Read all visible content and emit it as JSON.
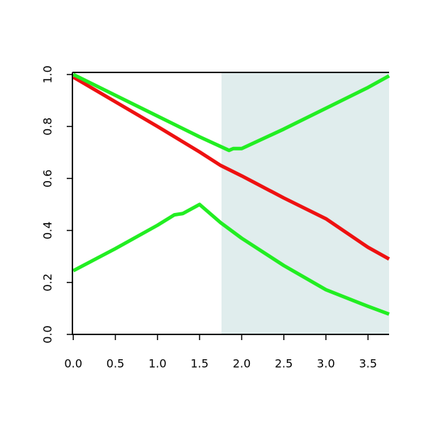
{
  "chart_data": {
    "type": "line",
    "xlim": [
      -0.01,
      3.75
    ],
    "ylim": [
      0,
      1.008
    ],
    "xticks": [
      {
        "value": 0,
        "label": "0.0"
      },
      {
        "value": 0.5,
        "label": "0.5"
      },
      {
        "value": 1,
        "label": "1.0"
      },
      {
        "value": 1.5,
        "label": "1.5"
      },
      {
        "value": 2,
        "label": "2.0"
      },
      {
        "value": 2.5,
        "label": "2.5"
      },
      {
        "value": 3,
        "label": "3.0"
      },
      {
        "value": 3.5,
        "label": "3.5"
      }
    ],
    "yticks": [
      {
        "value": 0,
        "label": "0.0"
      },
      {
        "value": 0.2,
        "label": "0.2"
      },
      {
        "value": 0.4,
        "label": "0.4"
      },
      {
        "value": 0.6,
        "label": "0.6"
      },
      {
        "value": 0.8,
        "label": "0.8"
      },
      {
        "value": 1,
        "label": "1.0"
      }
    ],
    "shade_from": 1.76,
    "shade_color": "#e0eded",
    "series": [
      {
        "color": "#ee1111",
        "x": [
          0,
          0.5,
          1,
          1.5,
          1.75,
          2,
          2.5,
          3,
          3.5,
          3.75
        ],
        "values": [
          0.99,
          0.895,
          0.8,
          0.702,
          0.65,
          0.61,
          0.525,
          0.445,
          0.335,
          0.29
        ]
      },
      {
        "color": "#22ee22",
        "x": [
          0,
          0.5,
          1,
          1.5,
          1.85,
          1.9,
          2.0,
          2.5,
          3,
          3.5,
          3.75
        ],
        "values": [
          1.0,
          0.92,
          0.84,
          0.76,
          0.708,
          0.715,
          0.715,
          0.79,
          0.87,
          0.95,
          0.995
        ]
      },
      {
        "color": "#22ee22",
        "x": [
          0,
          0.5,
          1,
          1.2,
          1.3,
          1.5,
          1.75,
          2,
          2.5,
          3,
          3.5,
          3.75
        ],
        "values": [
          0.245,
          0.33,
          0.42,
          0.46,
          0.465,
          0.5,
          0.43,
          0.37,
          0.265,
          0.172,
          0.108,
          0.078
        ]
      }
    ]
  }
}
